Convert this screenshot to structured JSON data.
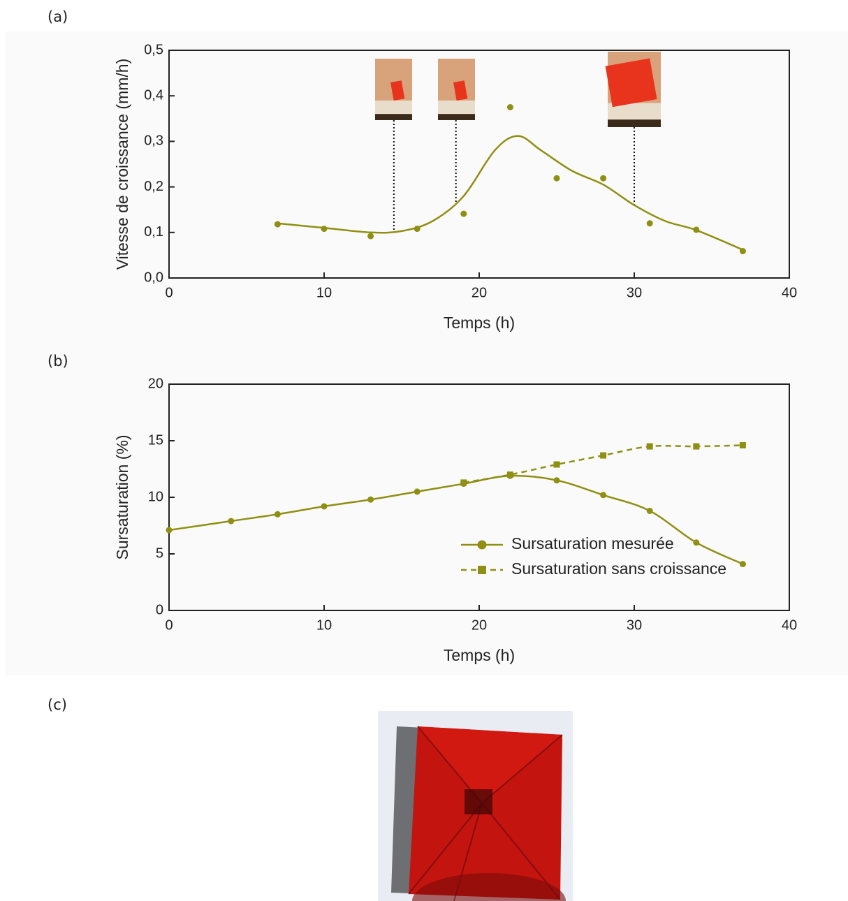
{
  "panel_labels": [
    "(a)",
    "(b)",
    "(c)"
  ],
  "chart_data": [
    {
      "type": "scatter",
      "xlabel": "Temps (h)",
      "ylabel": "Vitesse de croissance (mm/h)",
      "xlim": [
        0,
        40
      ],
      "xticks": [
        0,
        10,
        20,
        30,
        40
      ],
      "ylim": [
        0,
        0.5
      ],
      "yticks": [
        {
          "value": 0,
          "label": "0,0"
        },
        {
          "value": 0.1,
          "label": "0,1"
        },
        {
          "value": 0.2,
          "label": "0,2"
        },
        {
          "value": 0.3,
          "label": "0,3"
        },
        {
          "value": 0.4,
          "label": "0,4"
        },
        {
          "value": 0.5,
          "label": "0,5"
        }
      ],
      "image_markers": [
        14.5,
        18.5,
        30
      ],
      "series": [
        {
          "color": "#8f8f14",
          "marker": "circle",
          "line": "none",
          "x": [
            7,
            10,
            13,
            16,
            19,
            22,
            25,
            28,
            31,
            34,
            37
          ],
          "values": [
            0.118,
            0.108,
            0.092,
            0.108,
            0.141,
            0.375,
            0.219,
            0.219,
            0.12,
            0.106,
            0.059
          ]
        },
        {
          "color": "#8f8f14",
          "marker": "none",
          "line": "solid",
          "x": [
            7,
            10,
            13,
            15,
            17,
            19,
            21,
            22.5,
            24,
            26,
            28,
            30,
            32,
            34,
            37
          ],
          "values": [
            0.12,
            0.11,
            0.1,
            0.103,
            0.125,
            0.18,
            0.28,
            0.312,
            0.28,
            0.235,
            0.205,
            0.16,
            0.125,
            0.105,
            0.062
          ]
        }
      ]
    },
    {
      "type": "line",
      "xlabel": "Temps (h)",
      "ylabel": "Sursaturation (%)",
      "xlim": [
        0,
        40
      ],
      "xticks": [
        0,
        10,
        20,
        30,
        40
      ],
      "ylim": [
        0,
        20
      ],
      "yticks": [
        0,
        5,
        10,
        15,
        20
      ],
      "legend": "lower right",
      "series": [
        {
          "name": "Sursaturation mesurée",
          "color": "#8f8f14",
          "marker": "circle",
          "line": "solid",
          "x": [
            0,
            4,
            7,
            10,
            13,
            16,
            19,
            22,
            25,
            28,
            31,
            34,
            37
          ],
          "values": [
            7.1,
            7.9,
            8.5,
            9.2,
            9.8,
            10.5,
            11.2,
            11.9,
            11.5,
            10.2,
            8.8,
            6.0,
            4.1
          ]
        },
        {
          "name": "Sursaturation sans croissance",
          "color": "#8f8f14",
          "marker": "square",
          "line": "dashed",
          "x": [
            19,
            22,
            25,
            28,
            31,
            34,
            37
          ],
          "values": [
            11.3,
            12.0,
            12.9,
            13.7,
            14.5,
            14.5,
            14.6
          ]
        }
      ]
    }
  ]
}
